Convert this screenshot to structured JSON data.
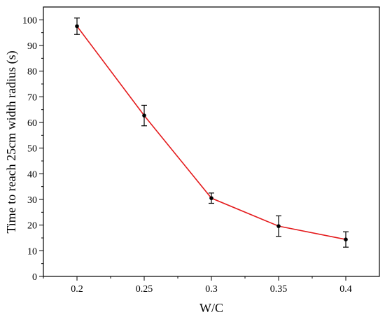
{
  "chart_data": {
    "type": "line",
    "title": "",
    "xlabel": "W/C",
    "ylabel": "Time to reach 25cm width radius (s)",
    "x": [
      0.2,
      0.25,
      0.3,
      0.35,
      0.4
    ],
    "x_tick_labels": [
      "0.2",
      "0.25",
      "0.3",
      "0.35",
      "0.4"
    ],
    "xlim": [
      0.175,
      0.425
    ],
    "ylim": [
      0,
      105
    ],
    "y_ticks": [
      0,
      10,
      20,
      30,
      40,
      50,
      60,
      70,
      80,
      90,
      100
    ],
    "grid": false,
    "legend": "none",
    "series": [
      {
        "values": [
          97.5,
          62.7,
          30.5,
          19.6,
          14.4
        ],
        "error": [
          3.2,
          4.0,
          2.0,
          4.0,
          3.0
        ],
        "color": "#e41a1c",
        "marker_color": "#000000"
      }
    ]
  }
}
